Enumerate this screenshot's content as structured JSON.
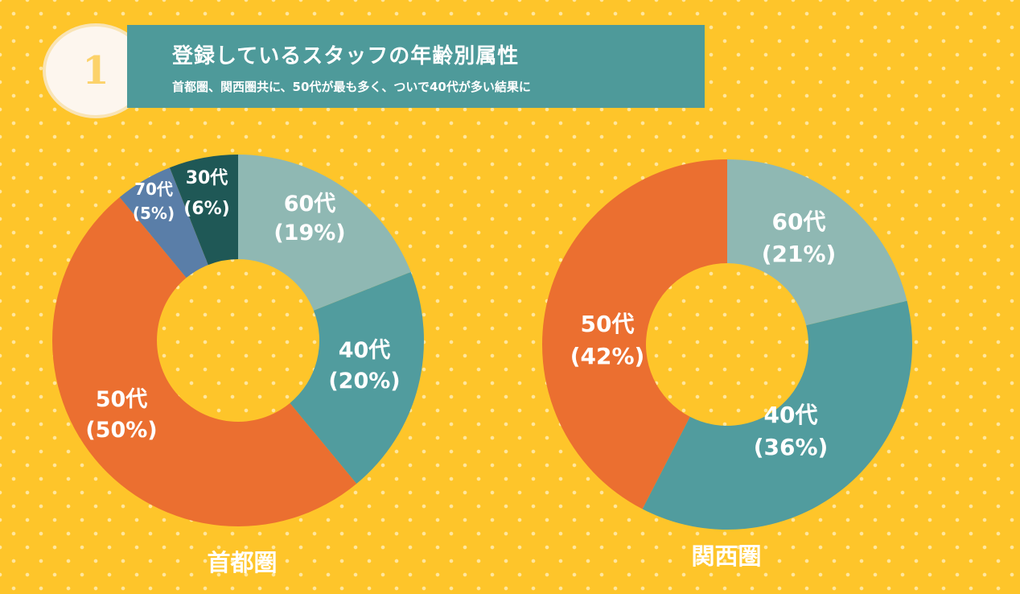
{
  "header": {
    "badge_number": "1",
    "title": "登録しているスタッフの年齢別属性",
    "subtitle": "首都圏、関西圏共に、50代が最も多く、ついで40代が多い結果に"
  },
  "colors": {
    "background": "#fec52a",
    "banner": "#4e9a9a",
    "age_60s": "#8fb8b3",
    "age_40s": "#519c9e",
    "age_50s": "#eb6f30",
    "age_70s": "#5a7ea8",
    "age_30s": "#1f5856"
  },
  "chart_data": [
    {
      "type": "pie",
      "title": "首都圏",
      "categories": [
        "60代",
        "40代",
        "50代",
        "70代",
        "30代"
      ],
      "values": [
        19,
        20,
        50,
        5,
        6
      ],
      "labels": [
        {
          "name": "60代",
          "pct": "(19%)"
        },
        {
          "name": "40代",
          "pct": "(20%)"
        },
        {
          "name": "50代",
          "pct": "(50%)"
        },
        {
          "name": "70代",
          "pct": "(5%)"
        },
        {
          "name": "30代",
          "pct": "(6%)"
        }
      ]
    },
    {
      "type": "pie",
      "title": "関西圏",
      "categories": [
        "60代",
        "40代",
        "50代"
      ],
      "values": [
        21,
        36,
        42
      ],
      "labels": [
        {
          "name": "60代",
          "pct": "(21%)"
        },
        {
          "name": "40代",
          "pct": "(36%)"
        },
        {
          "name": "50代",
          "pct": "(42%)"
        }
      ]
    }
  ]
}
